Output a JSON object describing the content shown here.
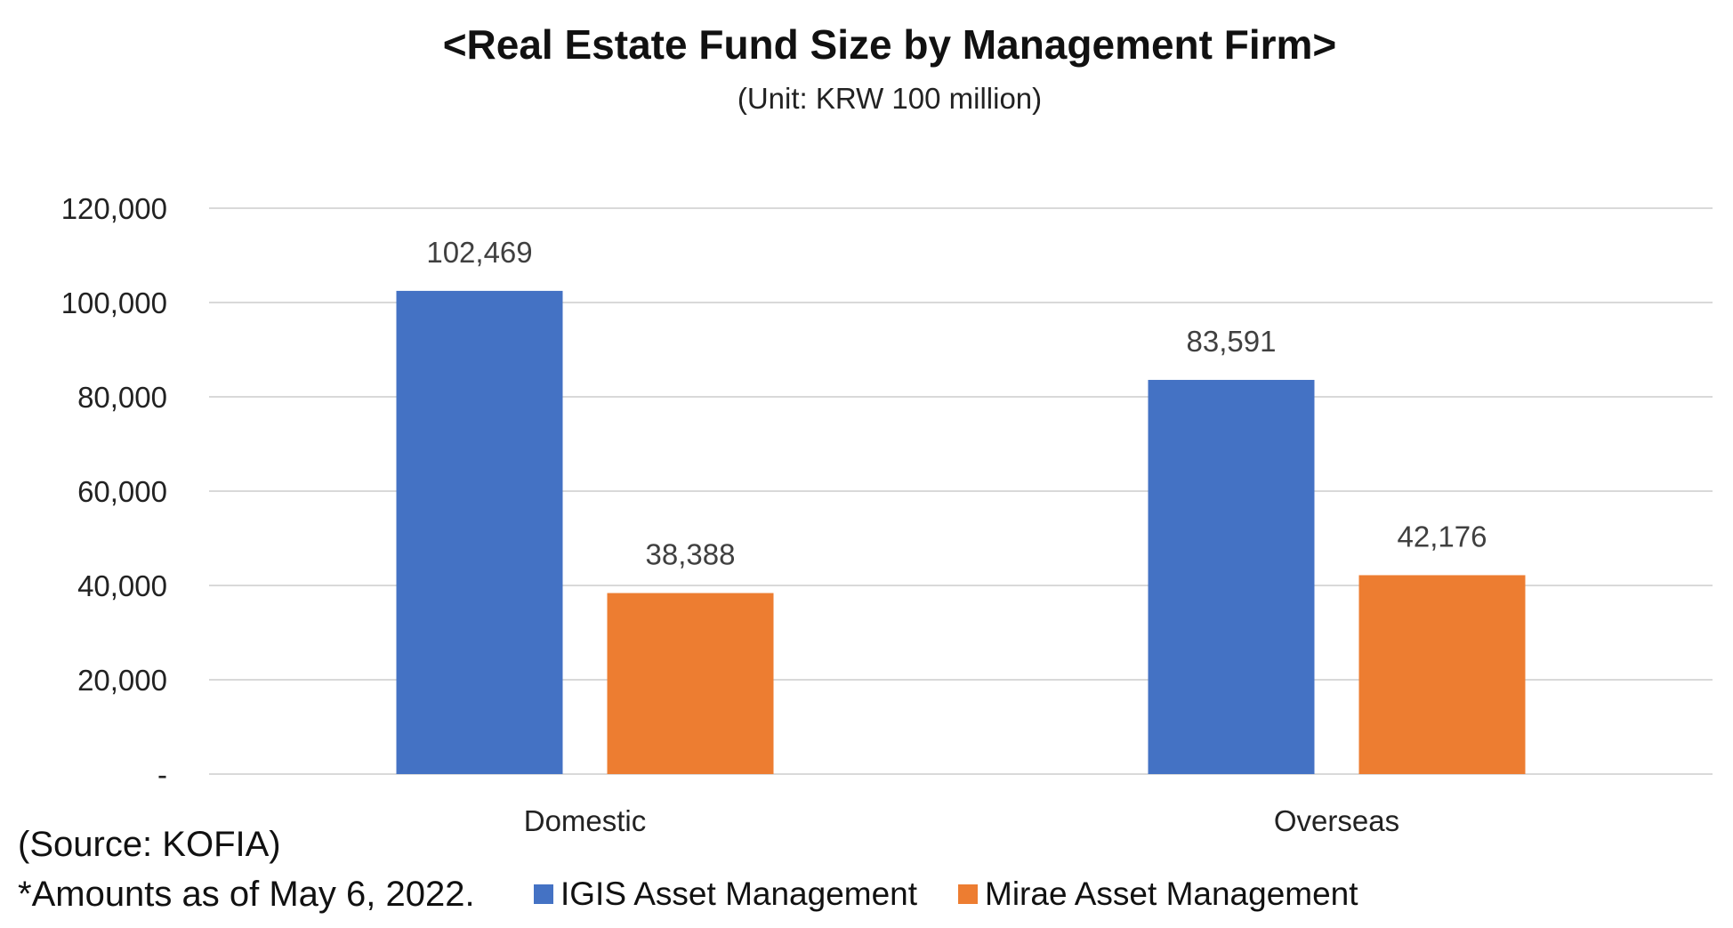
{
  "chart_data": {
    "type": "bar",
    "title": "<Real Estate Fund Size by Management Firm>",
    "subtitle": "(Unit: KRW 100 million)",
    "categories": [
      "Domestic",
      "Overseas"
    ],
    "series": [
      {
        "name": "IGIS Asset Management",
        "color": "#4472C4",
        "values": [
          102469,
          83591
        ],
        "labels": [
          "102,469",
          "83,591"
        ]
      },
      {
        "name": "Mirae Asset Management",
        "color": "#ED7D31",
        "values": [
          38388,
          42176
        ],
        "labels": [
          "38,388",
          "42,176"
        ]
      }
    ],
    "ylim": [
      0,
      120000
    ],
    "yticks": [
      {
        "value": 0,
        "label": "-"
      },
      {
        "value": 20000,
        "label": "20,000"
      },
      {
        "value": 40000,
        "label": "40,000"
      },
      {
        "value": 60000,
        "label": "60,000"
      },
      {
        "value": 80000,
        "label": "80,000"
      },
      {
        "value": 100000,
        "label": "100,000"
      },
      {
        "value": 120000,
        "label": "120,000"
      }
    ],
    "grid": true,
    "legend_position": "bottom"
  },
  "notes": {
    "source": "(Source:  KOFIA)",
    "amounts": "*Amounts as of May 6, 2022."
  }
}
